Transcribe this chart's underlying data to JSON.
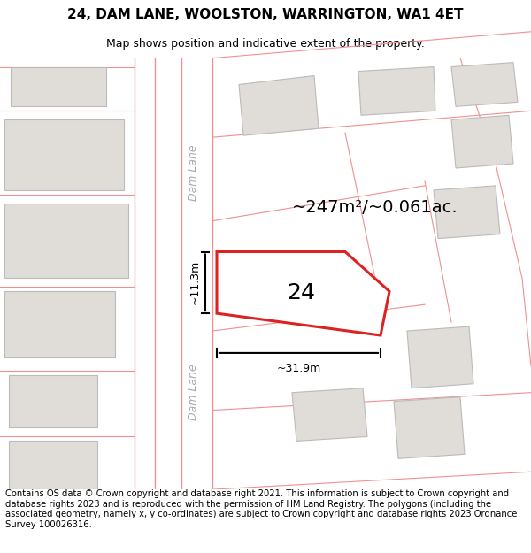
{
  "title": "24, DAM LANE, WOOLSTON, WARRINGTON, WA1 4ET",
  "subtitle": "Map shows position and indicative extent of the property.",
  "footer": "Contains OS data © Crown copyright and database right 2021. This information is subject to Crown copyright and database rights 2023 and is reproduced with the permission of HM Land Registry. The polygons (including the associated geometry, namely x, y co-ordinates) are subject to Crown copyright and database rights 2023 Ordnance Survey 100026316.",
  "area_text": "~247m²/~0.061ac.",
  "width_text": "~31.9m",
  "height_text": "~11.3m",
  "number_text": "24",
  "bg_color": "#ffffff",
  "map_bg": "#ffffff",
  "plot_fill": "#ffffff",
  "plot_edge": "#dd2222",
  "neighbor_fill": "#e0ddd8",
  "neighbor_edge": "#bbbbbb",
  "road_line_color": "#f09090",
  "road_label_color": "#aaaaaa",
  "title_fontsize": 11,
  "subtitle_fontsize": 9,
  "footer_fontsize": 7.2,
  "area_fontsize": 14,
  "number_fontsize": 18,
  "annotation_fontsize": 9,
  "road_label_fontsize": 9
}
